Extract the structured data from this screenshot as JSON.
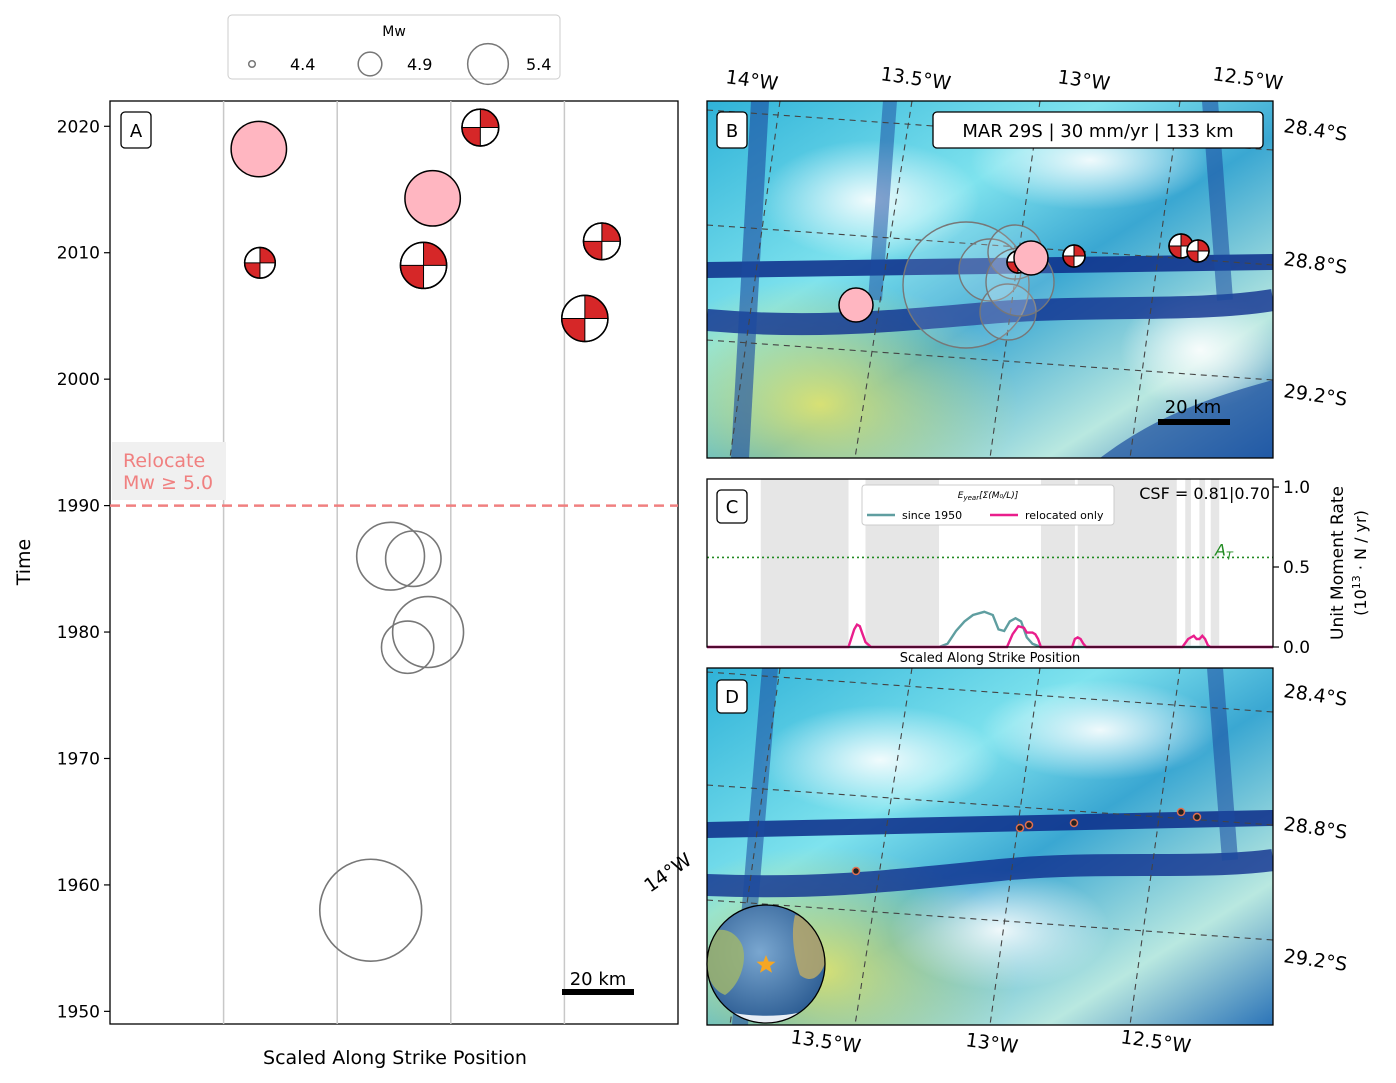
{
  "legend": {
    "title": "Mw",
    "entries": [
      {
        "label": "4.4",
        "mw": 4.4
      },
      {
        "label": "4.9",
        "mw": 4.9
      },
      {
        "label": "5.4",
        "mw": 5.4
      }
    ]
  },
  "panel_a": {
    "label": "A",
    "xlabel": "Scaled Along Strike Position",
    "ylabel": "Time",
    "relocate_label_line1": "Relocate",
    "relocate_label_line2": "Mw ≥ 5.0",
    "scale_bar": "20 km",
    "colors": {
      "relocate": "#f08080",
      "pink": "#ffb6c1",
      "mechanism": "#d62728",
      "historic": "#777777"
    }
  },
  "panel_b": {
    "label": "B",
    "info_box": "MAR 29S | 30 mm/yr | 133 km",
    "scale_bar": "20 km",
    "lon_labels": [
      "14°W",
      "13.5°W",
      "13°W",
      "12.5°W"
    ],
    "lat_labels": [
      "28.4°S",
      "28.8°S",
      "29.2°S"
    ]
  },
  "panel_c": {
    "label": "C",
    "legend_title": "E_year[Σ(M0/L)]",
    "legend_title_prefix": "E",
    "legend_title_sub": "year",
    "legend_title_suffix": "[Σ(M₀/L)]",
    "csf_text": "CSF = 0.81|0.70",
    "at_label": "A",
    "at_sub": "T",
    "xlabel": "Scaled Along Strike Position",
    "ylabel_line1": "Unit Moment Rate",
    "ylabel_line2": "(10",
    "ylabel_exp": "13",
    "ylabel_line3": " · N / yr)",
    "yticks": [
      "0.0",
      "0.5",
      "1.0"
    ],
    "colors": {
      "since_1950": "#5f9ea0",
      "relocated_only": "#e91e8c",
      "at_line": "#228b22",
      "gray_band": "#e6e6e6"
    }
  },
  "panel_d": {
    "label": "D",
    "lon_labels": [
      "14°W",
      "13.5°W",
      "13°W",
      "12.5°W"
    ],
    "lat_labels": [
      "28.4°S",
      "28.8°S",
      "29.2°S"
    ]
  },
  "chart_data": [
    {
      "type": "scatter",
      "panel": "A",
      "xlabel": "Scaled Along Strike Position",
      "ylabel": "Time",
      "ylim": [
        1949,
        2022
      ],
      "xlim": [
        0,
        1
      ],
      "yticks": [
        1950,
        1960,
        1970,
        1980,
        1990,
        2000,
        2010,
        2020
      ],
      "relocate_threshold_year": 1990,
      "series": [
        {
          "kind": "relocated_pink",
          "points": [
            {
              "x": 0.262,
              "y": 2018.2,
              "mw": 5.1
            },
            {
              "x": 0.568,
              "y": 2014.3,
              "mw": 5.1
            }
          ]
        },
        {
          "kind": "focal_mechanism",
          "points": [
            {
              "x": 0.264,
              "y": 2009.2,
              "mw": 4.7
            },
            {
              "x": 0.552,
              "y": 2009.0,
              "mw": 4.95
            },
            {
              "x": 0.652,
              "y": 2019.9,
              "mw": 4.8
            },
            {
              "x": 0.866,
              "y": 2010.9,
              "mw": 4.8
            },
            {
              "x": 0.836,
              "y": 2004.8,
              "mw": 4.95
            }
          ]
        },
        {
          "kind": "historic_hollow",
          "points": [
            {
              "x": 0.494,
              "y": 1986.0,
              "mw": 5.3
            },
            {
              "x": 0.534,
              "y": 1985.8,
              "mw": 5.1
            },
            {
              "x": 0.56,
              "y": 1980.0,
              "mw": 5.35
            },
            {
              "x": 0.524,
              "y": 1978.8,
              "mw": 5.05
            },
            {
              "x": 0.459,
              "y": 1958.0,
              "mw": 5.85
            }
          ]
        }
      ]
    },
    {
      "type": "line",
      "panel": "C",
      "xlabel": "Scaled Along Strike Position",
      "ylim": [
        0,
        1.05
      ],
      "yticks": [
        0.0,
        0.5,
        1.0
      ],
      "at_threshold": 0.56,
      "series": [
        {
          "name": "since 1950",
          "x": [
            0.0,
            0.41,
            0.425,
            0.44,
            0.455,
            0.47,
            0.49,
            0.505,
            0.515,
            0.525,
            0.535,
            0.545,
            0.555,
            0.565,
            0.575,
            0.59,
            1.0
          ],
          "y": [
            0.0,
            0.0,
            0.02,
            0.1,
            0.16,
            0.2,
            0.22,
            0.2,
            0.11,
            0.1,
            0.16,
            0.18,
            0.16,
            0.06,
            0.02,
            0.0,
            0.0
          ]
        },
        {
          "name": "relocated only",
          "x": [
            0.0,
            0.25,
            0.26,
            0.265,
            0.27,
            0.275,
            0.28,
            0.29,
            0.53,
            0.54,
            0.55,
            0.56,
            0.565,
            0.575,
            0.58,
            0.585,
            0.59,
            0.6,
            0.645,
            0.65,
            0.655,
            0.66,
            0.665,
            0.67,
            0.84,
            0.85,
            0.86,
            0.865,
            0.87,
            0.875,
            0.88,
            0.885,
            0.89,
            1.0
          ],
          "y": [
            0.0,
            0.0,
            0.11,
            0.14,
            0.13,
            0.08,
            0.03,
            0.0,
            0.0,
            0.08,
            0.13,
            0.12,
            0.09,
            0.09,
            0.08,
            0.05,
            0.0,
            0.0,
            0.0,
            0.05,
            0.06,
            0.05,
            0.02,
            0.0,
            0.0,
            0.05,
            0.07,
            0.05,
            0.05,
            0.07,
            0.05,
            0.01,
            0.0,
            0.0
          ]
        }
      ]
    }
  ]
}
